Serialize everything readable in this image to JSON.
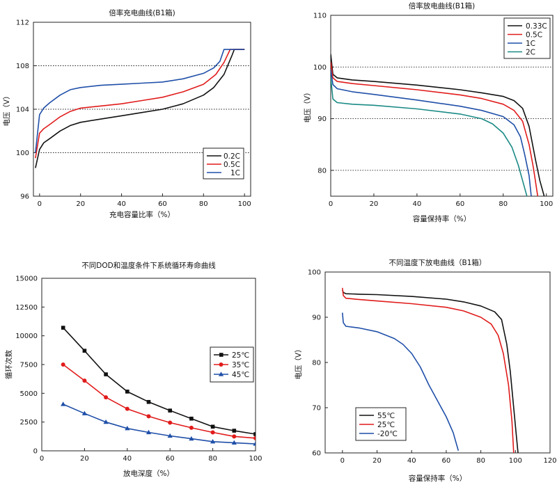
{
  "chart_data": [
    {
      "id": "c1",
      "type": "line",
      "title": "倍率充电曲线(B1箱)",
      "xlabel": "充电容量比率（%）",
      "ylabel": "电压（V）",
      "xlim": [
        -3,
        103
      ],
      "ylim": [
        96,
        112
      ],
      "xticks": [
        0,
        20,
        40,
        60,
        80,
        100
      ],
      "yticks": [
        96,
        100,
        104,
        108,
        112
      ],
      "grid_y": [
        100,
        104,
        108
      ],
      "legend_position": "bottom-right",
      "series": [
        {
          "name": "0.2C",
          "color": "#111111",
          "points": [
            [
              -2,
              98.6
            ],
            [
              0,
              100.3
            ],
            [
              2,
              100.9
            ],
            [
              5,
              101.3
            ],
            [
              10,
              102.0
            ],
            [
              15,
              102.5
            ],
            [
              20,
              102.8
            ],
            [
              30,
              103.1
            ],
            [
              40,
              103.4
            ],
            [
              50,
              103.7
            ],
            [
              60,
              104.0
            ],
            [
              70,
              104.5
            ],
            [
              80,
              105.3
            ],
            [
              85,
              106.0
            ],
            [
              90,
              107.2
            ],
            [
              94,
              109.0
            ],
            [
              95,
              109.5
            ],
            [
              100,
              109.5
            ]
          ]
        },
        {
          "name": "0.5C",
          "color": "#e11b1b",
          "points": [
            [
              -2,
              99.5
            ],
            [
              0,
              101.8
            ],
            [
              2,
              102.2
            ],
            [
              5,
              102.6
            ],
            [
              10,
              103.3
            ],
            [
              15,
              103.8
            ],
            [
              20,
              104.1
            ],
            [
              30,
              104.3
            ],
            [
              40,
              104.5
            ],
            [
              50,
              104.8
            ],
            [
              60,
              105.1
            ],
            [
              70,
              105.6
            ],
            [
              80,
              106.3
            ],
            [
              86,
              107.2
            ],
            [
              90,
              108.3
            ],
            [
              93,
              109.5
            ],
            [
              100,
              109.5
            ]
          ]
        },
        {
          "name": "1C",
          "color": "#1f4fa8",
          "points": [
            [
              -2,
              100.0
            ],
            [
              0,
              103.5
            ],
            [
              2,
              104.1
            ],
            [
              5,
              104.6
            ],
            [
              10,
              105.3
            ],
            [
              15,
              105.8
            ],
            [
              20,
              106.0
            ],
            [
              30,
              106.2
            ],
            [
              40,
              106.3
            ],
            [
              50,
              106.4
            ],
            [
              60,
              106.5
            ],
            [
              70,
              106.8
            ],
            [
              80,
              107.3
            ],
            [
              85,
              107.8
            ],
            [
              88,
              108.4
            ],
            [
              90,
              109.5
            ],
            [
              100,
              109.5
            ]
          ]
        }
      ]
    },
    {
      "id": "c2",
      "type": "line",
      "title": "倍率放电曲线(B1箱)",
      "xlabel": "容量保持率（%）",
      "ylabel": "电压（V）",
      "xlim": [
        0,
        103
      ],
      "ylim": [
        75,
        110
      ],
      "xticks": [
        0,
        20,
        40,
        60,
        80,
        100
      ],
      "yticks": [
        80,
        90,
        100,
        110
      ],
      "grid_y": [
        80,
        90,
        100
      ],
      "legend_position": "top-right",
      "series": [
        {
          "name": "0.33C",
          "color": "#111111",
          "points": [
            [
              0,
              102.5
            ],
            [
              1,
              98.6
            ],
            [
              3,
              97.9
            ],
            [
              10,
              97.5
            ],
            [
              20,
              97.2
            ],
            [
              40,
              96.5
            ],
            [
              60,
              95.6
            ],
            [
              70,
              95.0
            ],
            [
              80,
              94.3
            ],
            [
              85,
              93.5
            ],
            [
              89,
              92.0
            ],
            [
              92,
              88.5
            ],
            [
              95,
              82.0
            ],
            [
              97,
              78.0
            ],
            [
              99,
              75.0
            ]
          ]
        },
        {
          "name": "0.5C",
          "color": "#e11b1b",
          "points": [
            [
              0,
              101.0
            ],
            [
              1,
              97.9
            ],
            [
              3,
              97.2
            ],
            [
              10,
              96.8
            ],
            [
              20,
              96.4
            ],
            [
              40,
              95.6
            ],
            [
              60,
              94.6
            ],
            [
              70,
              93.9
            ],
            [
              80,
              92.8
            ],
            [
              85,
              91.6
            ],
            [
              89,
              89.5
            ],
            [
              92,
              85.0
            ],
            [
              94,
              80.5
            ],
            [
              96,
              75.0
            ]
          ]
        },
        {
          "name": "1C",
          "color": "#1f4fa8",
          "points": [
            [
              0,
              99.5
            ],
            [
              1,
              96.6
            ],
            [
              3,
              95.8
            ],
            [
              10,
              95.2
            ],
            [
              20,
              94.7
            ],
            [
              40,
              93.6
            ],
            [
              60,
              92.4
            ],
            [
              70,
              91.6
            ],
            [
              80,
              90.4
            ],
            [
              85,
              88.8
            ],
            [
              88,
              86.5
            ],
            [
              90,
              83.0
            ],
            [
              92,
              79.0
            ],
            [
              93,
              75.0
            ]
          ]
        },
        {
          "name": "2C",
          "color": "#1a8a85",
          "points": [
            [
              0,
              98.0
            ],
            [
              1,
              93.8
            ],
            [
              3,
              93.1
            ],
            [
              10,
              92.8
            ],
            [
              20,
              92.6
            ],
            [
              40,
              91.9
            ],
            [
              60,
              90.9
            ],
            [
              70,
              90.0
            ],
            [
              75,
              89.0
            ],
            [
              80,
              87.2
            ],
            [
              84,
              84.5
            ],
            [
              87,
              81.0
            ],
            [
              89,
              78.0
            ],
            [
              91,
              75.0
            ]
          ]
        }
      ]
    },
    {
      "id": "c3",
      "type": "line",
      "title": "不同DOD和温度条件下系统循环寿命曲线",
      "xlabel": "放电深度（%）",
      "ylabel": "循环次数",
      "xlim": [
        0,
        100
      ],
      "ylim": [
        0,
        15000
      ],
      "xticks": [
        0,
        20,
        40,
        60,
        80,
        100
      ],
      "yticks": [
        0,
        2500,
        5000,
        7500,
        10000,
        12500,
        15000
      ],
      "legend_position": "center-right",
      "series": [
        {
          "name": "25℃",
          "color": "#111111",
          "marker": "square",
          "points": [
            [
              10,
              10700
            ],
            [
              20,
              8700
            ],
            [
              30,
              6650
            ],
            [
              40,
              5150
            ],
            [
              50,
              4250
            ],
            [
              60,
              3500
            ],
            [
              70,
              2800
            ],
            [
              80,
              2100
            ],
            [
              90,
              1750
            ],
            [
              100,
              1450
            ]
          ]
        },
        {
          "name": "35℃",
          "color": "#e11b1b",
          "marker": "circle",
          "points": [
            [
              10,
              7500
            ],
            [
              20,
              6100
            ],
            [
              30,
              4650
            ],
            [
              40,
              3650
            ],
            [
              50,
              3000
            ],
            [
              60,
              2450
            ],
            [
              70,
              2000
            ],
            [
              80,
              1600
            ],
            [
              90,
              1250
            ],
            [
              100,
              1100
            ]
          ]
        },
        {
          "name": "45℃",
          "color": "#1f4fa8",
          "marker": "triangle",
          "points": [
            [
              10,
              4050
            ],
            [
              20,
              3250
            ],
            [
              30,
              2500
            ],
            [
              40,
              1950
            ],
            [
              50,
              1600
            ],
            [
              60,
              1300
            ],
            [
              70,
              1050
            ],
            [
              80,
              800
            ],
            [
              90,
              700
            ],
            [
              100,
              600
            ]
          ]
        }
      ]
    },
    {
      "id": "c4",
      "type": "line",
      "title": "不同温度下放电曲线（B1箱）",
      "xlabel": "容量保持率（%）",
      "ylabel": "电压（V）",
      "xlim": [
        -10,
        120
      ],
      "ylim": [
        60,
        100
      ],
      "xticks": [
        0,
        20,
        40,
        60,
        80,
        100,
        120
      ],
      "yticks": [
        60,
        70,
        80,
        90,
        100
      ],
      "legend_position": "bottom-left",
      "series": [
        {
          "name": "55℃",
          "color": "#111111",
          "points": [
            [
              0,
              96.0
            ],
            [
              0.5,
              95.5
            ],
            [
              2,
              95.2
            ],
            [
              10,
              95.1
            ],
            [
              20,
              95.0
            ],
            [
              40,
              94.6
            ],
            [
              60,
              94.0
            ],
            [
              70,
              93.4
            ],
            [
              80,
              92.5
            ],
            [
              88,
              91.2
            ],
            [
              92,
              89.5
            ],
            [
              95,
              84.0
            ],
            [
              97,
              78.0
            ],
            [
              99,
              70.0
            ],
            [
              100.5,
              64.0
            ],
            [
              101.5,
              60.0
            ]
          ]
        },
        {
          "name": "25℃",
          "color": "#e11b1b",
          "points": [
            [
              0,
              96.5
            ],
            [
              0.5,
              94.8
            ],
            [
              2,
              94.2
            ],
            [
              10,
              93.9
            ],
            [
              20,
              93.6
            ],
            [
              40,
              93.0
            ],
            [
              60,
              92.2
            ],
            [
              70,
              91.4
            ],
            [
              80,
              90.0
            ],
            [
              86,
              88.5
            ],
            [
              90,
              86.0
            ],
            [
              93,
              82.0
            ],
            [
              96,
              75.0
            ],
            [
              98,
              67.0
            ],
            [
              99,
              60.0
            ]
          ]
        },
        {
          "name": "-20℃",
          "color": "#1f4fa8",
          "points": [
            [
              0,
              91.0
            ],
            [
              0.5,
              88.8
            ],
            [
              2,
              88.0
            ],
            [
              10,
              87.6
            ],
            [
              20,
              86.8
            ],
            [
              30,
              85.3
            ],
            [
              35,
              84.0
            ],
            [
              40,
              82.0
            ],
            [
              45,
              79.0
            ],
            [
              50,
              75.0
            ],
            [
              55,
              71.5
            ],
            [
              60,
              68.0
            ],
            [
              64,
              64.5
            ],
            [
              67,
              60.5
            ]
          ]
        }
      ]
    }
  ]
}
